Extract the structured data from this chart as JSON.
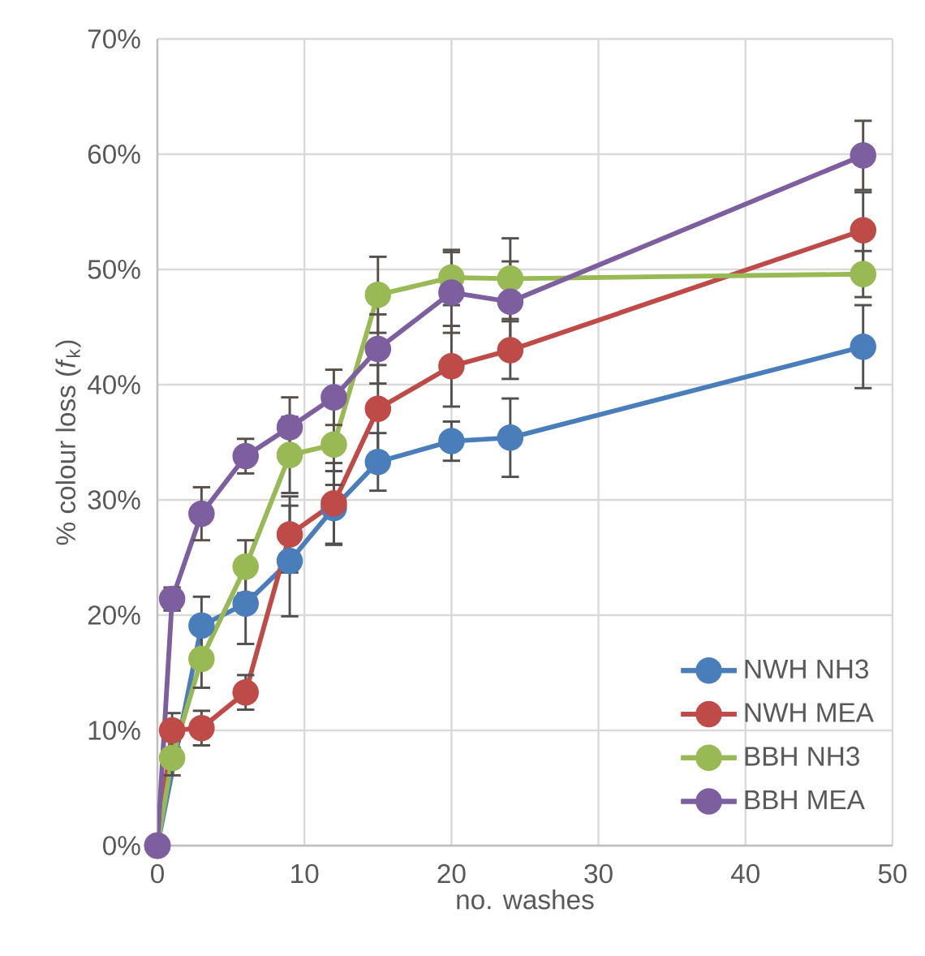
{
  "chart_data": {
    "type": "line",
    "xlabel": "no. washes",
    "ylabel": "% colour loss (*f*$_{k}$)",
    "x": [
      0,
      1,
      3,
      6,
      9,
      12,
      15,
      20,
      24,
      48
    ],
    "series": [
      {
        "name": "NWH NH3",
        "color": "#4a7ebb",
        "values": [
          0,
          null,
          19.1,
          21.0,
          24.7,
          29.3,
          33.3,
          35.1,
          35.4,
          43.3
        ],
        "errors": [
          null,
          null,
          2.5,
          3.5,
          4.8,
          3.2,
          2.5,
          1.7,
          3.4,
          3.6
        ]
      },
      {
        "name": "NWH MEA",
        "color": "#be4b48",
        "values": [
          0,
          10.0,
          10.2,
          13.3,
          27.0,
          29.7,
          37.9,
          41.6,
          43.0,
          53.4
        ],
        "errors": [
          null,
          1.5,
          1.5,
          1.5,
          3.3,
          3.5,
          3.8,
          3.5,
          2.5,
          3.3
        ]
      },
      {
        "name": "BBH NH3",
        "color": "#98b954",
        "values": [
          0,
          7.6,
          16.2,
          24.2,
          33.9,
          34.8,
          47.8,
          49.3,
          49.2,
          49.6
        ],
        "errors": [
          null,
          1.5,
          2.5,
          2.3,
          3.3,
          3.5,
          3.3,
          2.4,
          3.5,
          2.0
        ]
      },
      {
        "name": "BBH MEA",
        "color": "#7d5fa0",
        "values": [
          0,
          21.4,
          28.8,
          33.8,
          36.3,
          38.9,
          43.1,
          48.0,
          47.2,
          59.9
        ],
        "errors": [
          null,
          1.0,
          2.3,
          1.5,
          2.6,
          2.4,
          3.0,
          3.5,
          3.5,
          3.0
        ]
      }
    ],
    "xlim": [
      0,
      50
    ],
    "xticks": [
      0,
      10,
      20,
      30,
      40,
      50
    ],
    "ylim": [
      0,
      70
    ],
    "yticks": [
      {
        "value": 0,
        "label": "0%"
      },
      {
        "value": 10,
        "label": "10%"
      },
      {
        "value": 20,
        "label": "20%"
      },
      {
        "value": 30,
        "label": "30%"
      },
      {
        "value": 40,
        "label": "40%"
      },
      {
        "value": 50,
        "label": "50%"
      },
      {
        "value": 60,
        "label": "60%"
      },
      {
        "value": 70,
        "label": "70%"
      }
    ],
    "grid": true,
    "legend": "bottom right",
    "marker": "circle",
    "line_style": "solid"
  }
}
